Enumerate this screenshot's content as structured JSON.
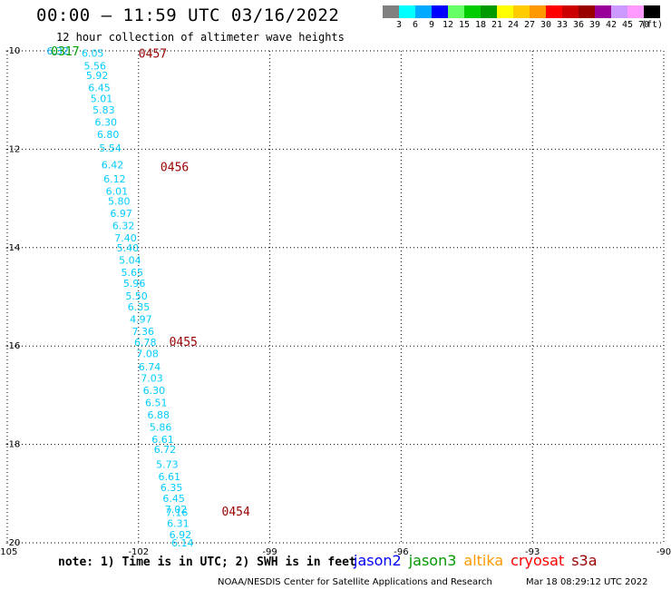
{
  "header": {
    "title": "00:00 – 11:59 UTC 03/16/2022",
    "subtitle": "12 hour collection of altimeter wave heights"
  },
  "colorbar": {
    "colors": [
      "#808080",
      "#00ffff",
      "#00aaff",
      "#0000ff",
      "#66ff66",
      "#00cc00",
      "#009900",
      "#ffff00",
      "#ffcc00",
      "#ff9900",
      "#ff0000",
      "#cc0000",
      "#990000",
      "#990099",
      "#cc99ff",
      "#ff99ff",
      "#000000"
    ],
    "labels": [
      "3",
      "6",
      "9",
      "12",
      "15",
      "18",
      "21",
      "24",
      "27",
      "30",
      "33",
      "36",
      "39",
      "42",
      "45",
      "70",
      "(ft)"
    ]
  },
  "chart_data": {
    "type": "scatter",
    "xlim": [
      -105,
      -90
    ],
    "ylim": [
      -20,
      -10
    ],
    "x_ticks": [
      "-105",
      "-102",
      "-99",
      "-96",
      "-93",
      "-90"
    ],
    "y_ticks": [
      "-10",
      "-12",
      "-14",
      "-16",
      "-18",
      "-20"
    ],
    "grid": true,
    "series": [
      {
        "name": "altika",
        "color": "#00ccff",
        "points": [
          {
            "lon": -103.3,
            "lat": -10.05,
            "swh": "6.05"
          },
          {
            "lon": -103.25,
            "lat": -10.3,
            "swh": "5.56"
          },
          {
            "lon": -103.2,
            "lat": -10.5,
            "swh": "5.92"
          },
          {
            "lon": -103.15,
            "lat": -10.75,
            "swh": "6.45"
          },
          {
            "lon": -103.1,
            "lat": -10.97,
            "swh": "5.01"
          },
          {
            "lon": -103.05,
            "lat": -11.2,
            "swh": "5.83"
          },
          {
            "lon": -103.0,
            "lat": -11.45,
            "swh": "6.30"
          },
          {
            "lon": -102.95,
            "lat": -11.7,
            "swh": "6.80"
          },
          {
            "lon": -102.9,
            "lat": -11.97,
            "swh": "5.54"
          },
          {
            "lon": -102.85,
            "lat": -12.32,
            "swh": "6.42"
          },
          {
            "lon": -102.8,
            "lat": -12.6,
            "swh": "6.12"
          },
          {
            "lon": -102.75,
            "lat": -12.85,
            "swh": "6.01"
          },
          {
            "lon": -102.7,
            "lat": -13.05,
            "swh": "5.80"
          },
          {
            "lon": -102.65,
            "lat": -13.3,
            "swh": "6.97"
          },
          {
            "lon": -102.6,
            "lat": -13.55,
            "swh": "6.32"
          },
          {
            "lon": -102.55,
            "lat": -13.8,
            "swh": "7.40"
          },
          {
            "lon": -102.5,
            "lat": -14.0,
            "swh": "5.40"
          },
          {
            "lon": -102.45,
            "lat": -14.25,
            "swh": "5.04"
          },
          {
            "lon": -102.4,
            "lat": -14.5,
            "swh": "5.65"
          },
          {
            "lon": -102.35,
            "lat": -14.72,
            "swh": "5.96"
          },
          {
            "lon": -102.3,
            "lat": -14.98,
            "swh": "5.50"
          },
          {
            "lon": -102.25,
            "lat": -15.2,
            "swh": "6.35"
          },
          {
            "lon": -102.2,
            "lat": -15.45,
            "swh": "4.97"
          },
          {
            "lon": -102.15,
            "lat": -15.7,
            "swh": "7.36"
          },
          {
            "lon": -102.1,
            "lat": -15.92,
            "swh": "6.78"
          },
          {
            "lon": -102.05,
            "lat": -16.15,
            "swh": "7.08"
          },
          {
            "lon": -102.0,
            "lat": -16.42,
            "swh": "6.74"
          },
          {
            "lon": -101.95,
            "lat": -16.65,
            "swh": "7.03"
          },
          {
            "lon": -101.9,
            "lat": -16.9,
            "swh": "6.30"
          },
          {
            "lon": -101.85,
            "lat": -17.15,
            "swh": "6.51"
          },
          {
            "lon": -101.8,
            "lat": -17.4,
            "swh": "6.88"
          },
          {
            "lon": -101.75,
            "lat": -17.65,
            "swh": "5.86"
          },
          {
            "lon": -101.7,
            "lat": -17.9,
            "swh": "6.61"
          },
          {
            "lon": -101.65,
            "lat": -18.1,
            "swh": "6.72"
          },
          {
            "lon": -101.6,
            "lat": -18.4,
            "swh": "5.73"
          },
          {
            "lon": -101.55,
            "lat": -18.65,
            "swh": "6.61"
          },
          {
            "lon": -101.5,
            "lat": -18.87,
            "swh": "6.35"
          },
          {
            "lon": -101.45,
            "lat": -19.1,
            "swh": "6.45"
          },
          {
            "lon": -101.4,
            "lat": -19.32,
            "swh": "7.02"
          },
          {
            "lon": -101.38,
            "lat": -19.38,
            "swh": "7.16"
          },
          {
            "lon": -101.35,
            "lat": -19.6,
            "swh": "6.31"
          },
          {
            "lon": -101.3,
            "lat": -19.83,
            "swh": "6.92"
          },
          {
            "lon": -101.25,
            "lat": -20.0,
            "swh": "6.14"
          }
        ]
      },
      {
        "name": "jason3",
        "color": "#009900",
        "points": [
          {
            "lon": -104.1,
            "lat": -10.0,
            "swh": "6.32",
            "color": "#00aaff"
          }
        ]
      }
    ],
    "time_labels": [
      {
        "lon": -102.0,
        "lat": -10.05,
        "text": "0457",
        "color": "#990000"
      },
      {
        "lon": -104.0,
        "lat": -10.0,
        "text": "0317",
        "color": "#009900"
      },
      {
        "lon": -101.5,
        "lat": -12.35,
        "text": "0456",
        "color": "#990000"
      },
      {
        "lon": -101.3,
        "lat": -15.9,
        "text": "0455",
        "color": "#990000"
      },
      {
        "lon": -100.1,
        "lat": -19.35,
        "text": "0454",
        "color": "#990000"
      }
    ]
  },
  "footer": {
    "note": "note: 1) Time is in UTC; 2) SWH is in feet",
    "legend": [
      {
        "label": "jason2",
        "color": "#0000ff"
      },
      {
        "label": "jason3",
        "color": "#009900"
      },
      {
        "label": "altika",
        "color": "#ff9900"
      },
      {
        "label": "cryosat",
        "color": "#ff0000"
      },
      {
        "label": "s3a",
        "color": "#990000"
      }
    ],
    "credit": "NOAA/NESDIS Center for Satellite Applications and Research",
    "timestamp": "Mar 18 08:29:12 UTC 2022"
  }
}
